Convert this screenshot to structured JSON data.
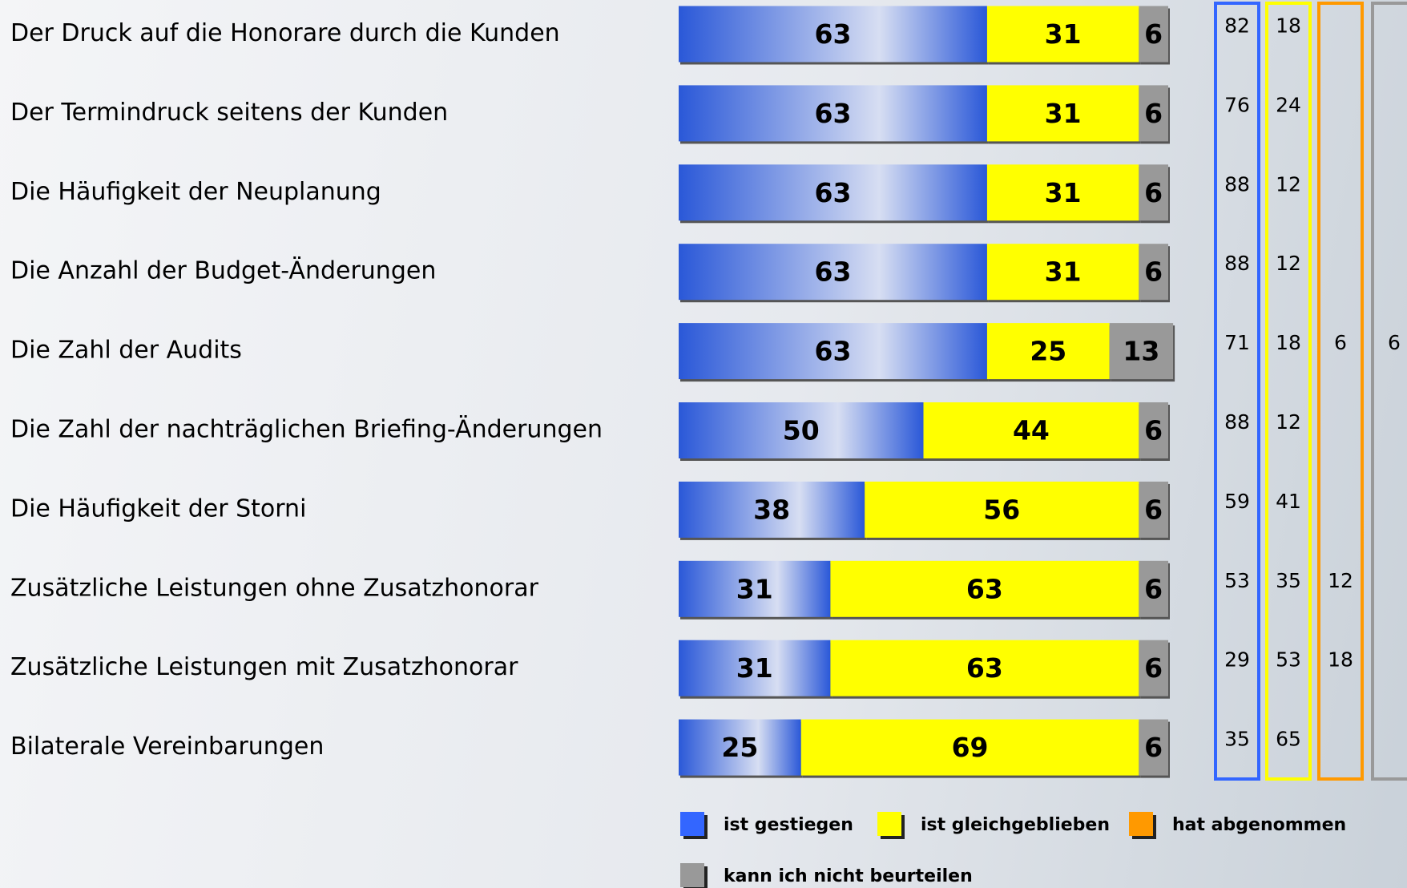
{
  "chart_data": {
    "type": "stacked_barh",
    "categories": [
      "Der Druck auf die Honorare durch die Kunden",
      "Der Termindruck seitens der Kunden",
      "Die Häufigkeit der Neuplanung",
      "Die Anzahl der Budget-Änderungen",
      "Die Zahl der Audits",
      "Die Zahl der nachträglichen Briefing-Änderungen",
      "Die Häufigkeit der Storni",
      "Zusätzliche Leistungen ohne Zusatzhonorar",
      "Zusätzliche Leistungen mit Zusatzhonorar",
      "Bilaterale Vereinbarungen"
    ],
    "xlim": [
      0,
      100
    ],
    "series": [
      {
        "name": "ist gestiegen",
        "color": "#3366ff",
        "values": [
          63,
          63,
          63,
          63,
          63,
          50,
          38,
          31,
          31,
          25
        ],
        "comparison": [
          82,
          76,
          88,
          88,
          71,
          88,
          59,
          53,
          29,
          35
        ]
      },
      {
        "name": "ist gleichgeblieben",
        "color": "#ffff00",
        "values": [
          31,
          31,
          31,
          31,
          25,
          44,
          56,
          63,
          63,
          69
        ],
        "comparison": [
          18,
          24,
          12,
          12,
          18,
          12,
          41,
          35,
          53,
          65
        ]
      },
      {
        "name": "hat abgenommen",
        "color": "#ff9900",
        "values": [
          null,
          null,
          null,
          null,
          null,
          null,
          null,
          null,
          null,
          null
        ],
        "comparison": [
          null,
          null,
          null,
          null,
          6,
          null,
          null,
          12,
          18,
          null
        ]
      },
      {
        "name": "kann ich nicht beurteilen",
        "color": "#999999",
        "values": [
          6,
          6,
          6,
          6,
          13,
          6,
          6,
          6,
          6,
          6
        ],
        "comparison": [
          null,
          null,
          null,
          null,
          6,
          null,
          null,
          null,
          null,
          null
        ]
      }
    ]
  }
}
